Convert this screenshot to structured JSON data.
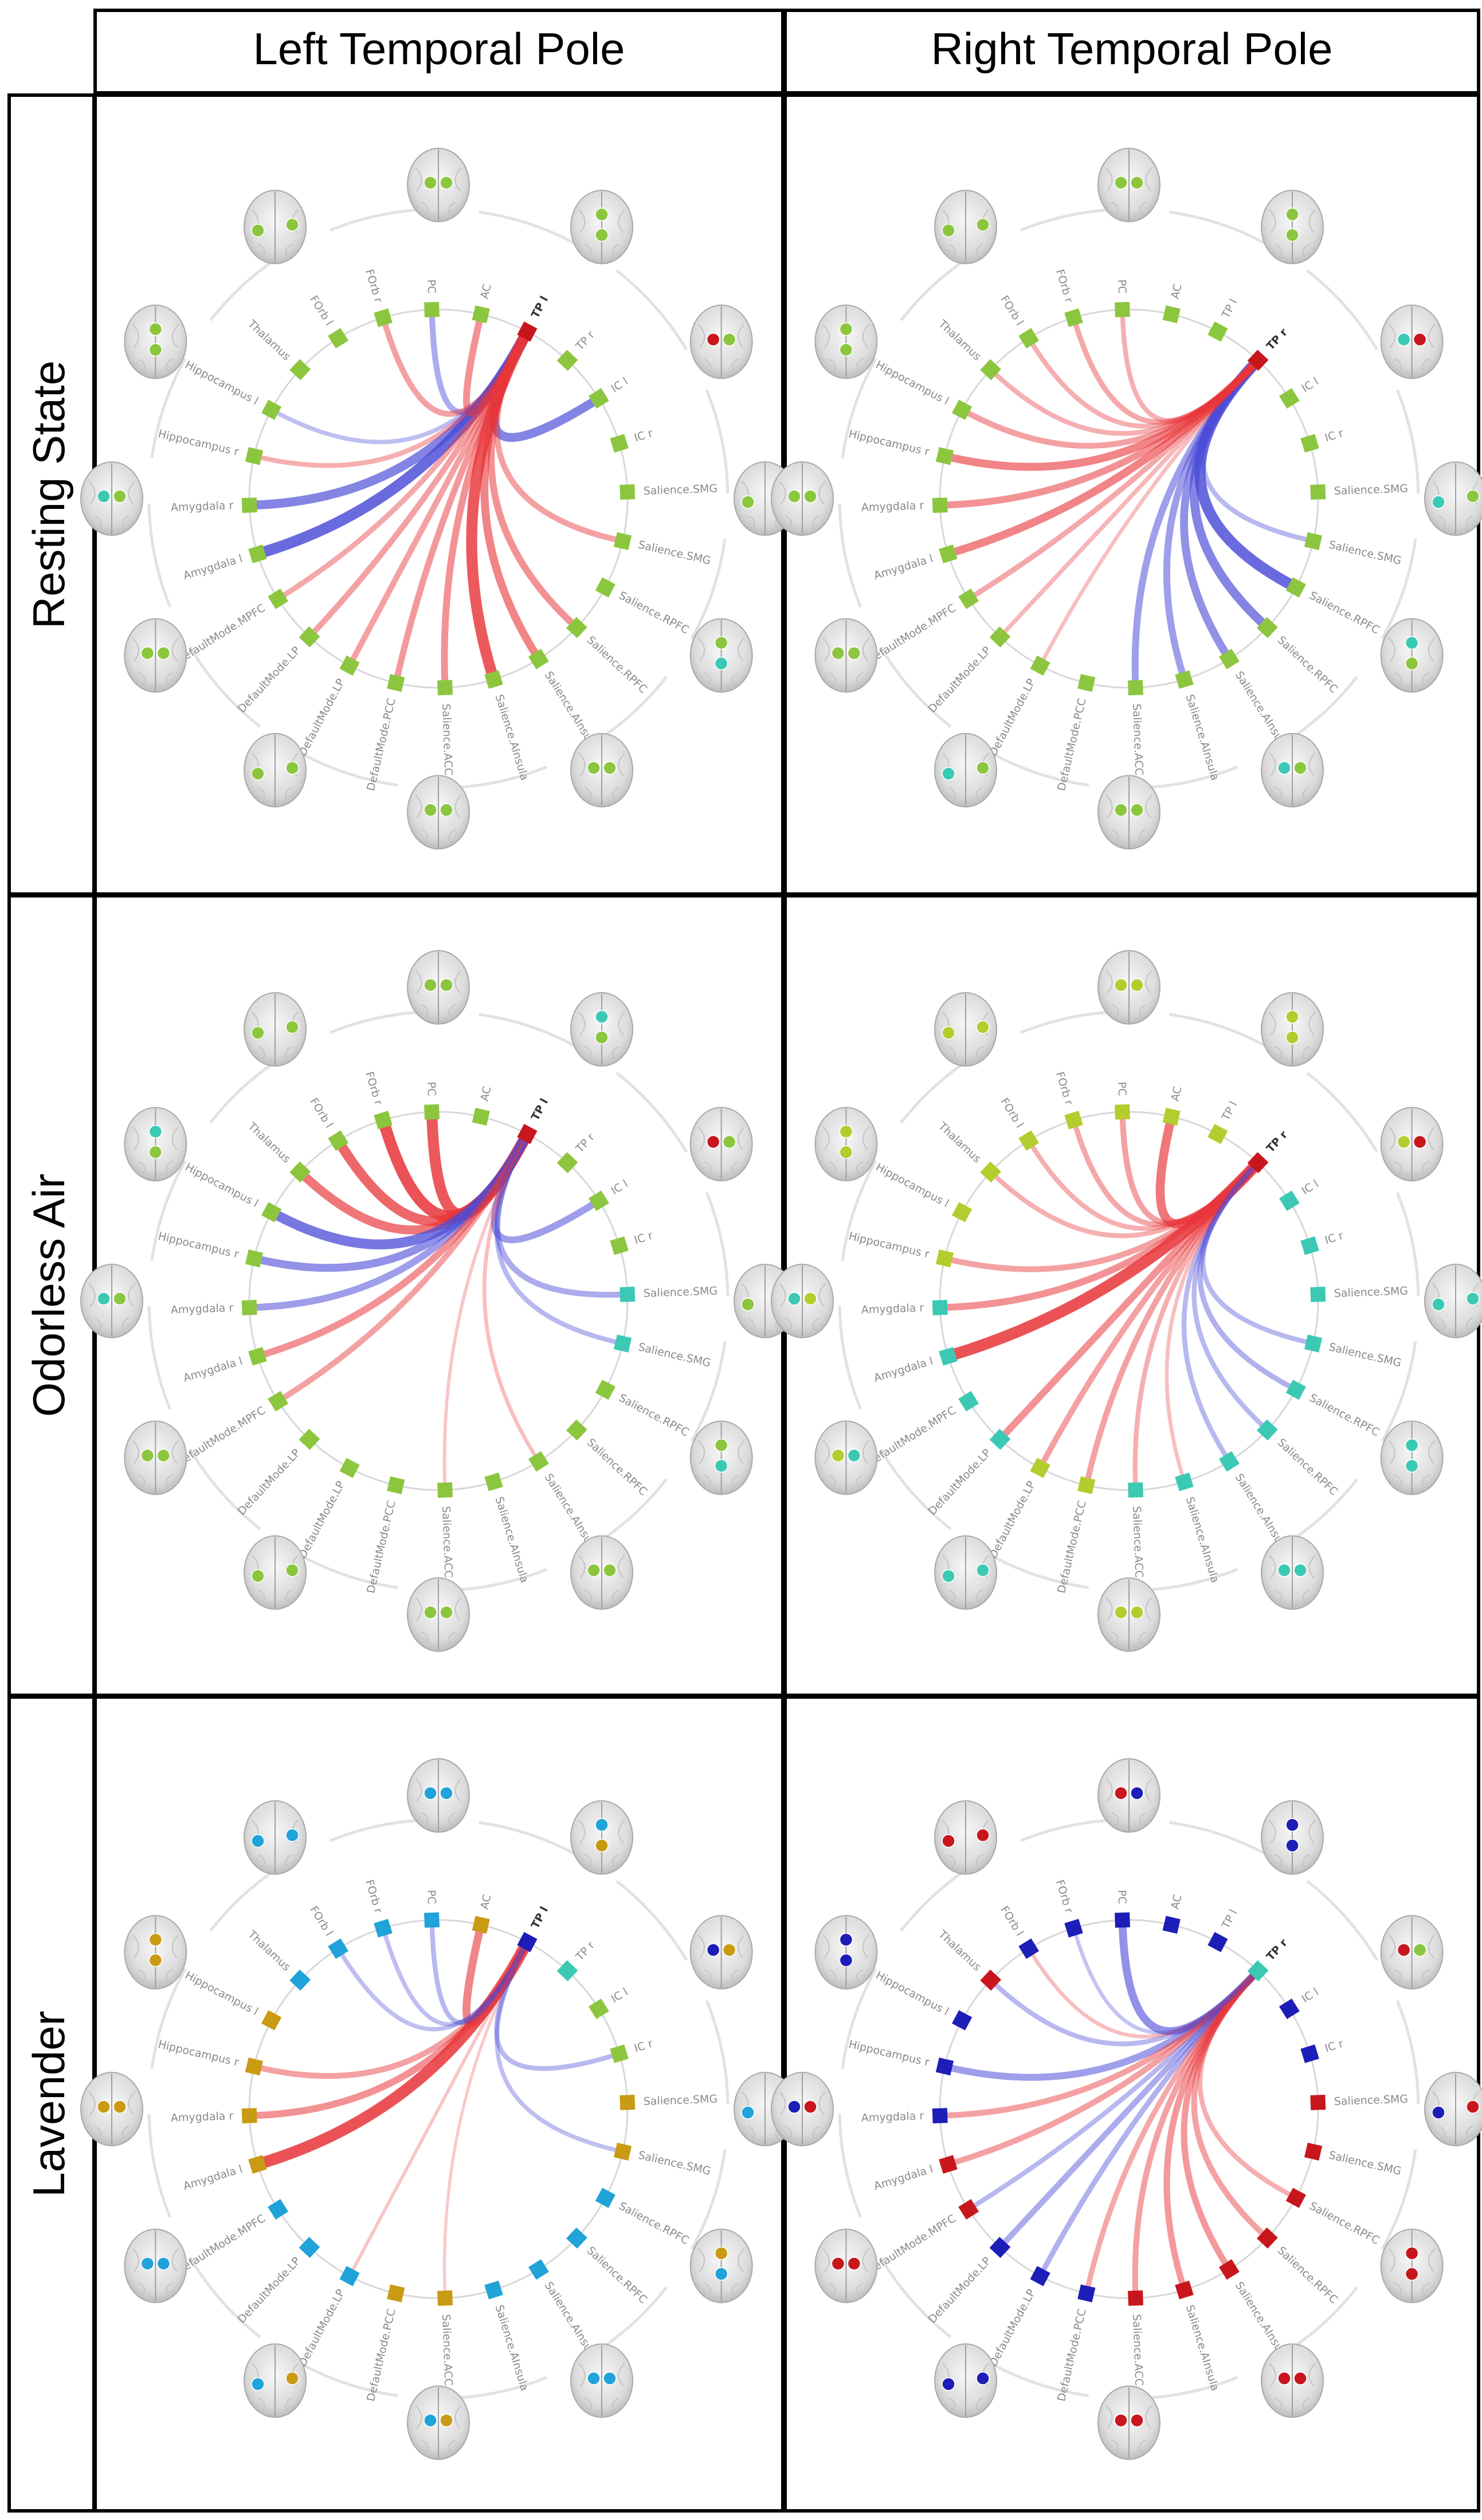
{
  "columns": [
    "Left Temporal Pole",
    "Right Temporal Pole"
  ],
  "rows": [
    "Resting State",
    "Odorless Air",
    "Lavender"
  ],
  "node_labels": [
    "TP l",
    "TP r",
    "IC l",
    "IC r",
    "Salience.SMG",
    "Salience.SMG",
    "Salience.RPFC",
    "Salience.RPFC",
    "Salience.AInsula",
    "Salience.AInsula",
    "Salience.ACC",
    "DefaultMode.PCC",
    "DefaultMode.LP",
    "DefaultMode.LP",
    "DefaultMode.MPFC",
    "Amygdala l",
    "Amygdala r",
    "Hippocampus r",
    "Hippocampus l",
    "Thalamus",
    "FOrb l",
    "FOrb r",
    "PC",
    "AC"
  ],
  "colors": {
    "green": "#8cc63f",
    "lime": "#b5cc2e",
    "teal": "#3cc9b4",
    "red": "#e8363a",
    "blue": "#4b4bd8",
    "sky": "#1fa3d8",
    "mustard": "#c99a14",
    "navy": "#1d1db8",
    "crimson": "#c8161d"
  },
  "panels": [
    {
      "nodes": [
        "crimson",
        "green",
        "green",
        "green",
        "green",
        "green",
        "green",
        "green",
        "green",
        "green",
        "green",
        "green",
        "green",
        "green",
        "green",
        "green",
        "green",
        "green",
        "green",
        "green",
        "green",
        "green",
        "green",
        "green"
      ],
      "edges": [
        {
          "from": 0,
          "to": 15,
          "sign": "neg",
          "strength": 0.9
        },
        {
          "from": 0,
          "to": 16,
          "sign": "neg",
          "strength": 0.7
        },
        {
          "from": 0,
          "to": 2,
          "sign": "neg",
          "strength": 0.7
        },
        {
          "from": 0,
          "to": 22,
          "sign": "neg",
          "strength": 0.4
        },
        {
          "from": 0,
          "to": 23,
          "sign": "pos",
          "strength": 0.5
        },
        {
          "from": 0,
          "to": 21,
          "sign": "pos",
          "strength": 0.4
        },
        {
          "from": 0,
          "to": 17,
          "sign": "pos",
          "strength": 0.3
        },
        {
          "from": 0,
          "to": 18,
          "sign": "neg",
          "strength": 0.25
        },
        {
          "from": 0,
          "to": 14,
          "sign": "pos",
          "strength": 0.35
        },
        {
          "from": 0,
          "to": 13,
          "sign": "pos",
          "strength": 0.4
        },
        {
          "from": 0,
          "to": 12,
          "sign": "pos",
          "strength": 0.4
        },
        {
          "from": 0,
          "to": 11,
          "sign": "pos",
          "strength": 0.45
        },
        {
          "from": 0,
          "to": 10,
          "sign": "pos",
          "strength": 0.5
        },
        {
          "from": 0,
          "to": 9,
          "sign": "pos",
          "strength": 0.9
        },
        {
          "from": 0,
          "to": 8,
          "sign": "pos",
          "strength": 0.6
        },
        {
          "from": 0,
          "to": 7,
          "sign": "pos",
          "strength": 0.5
        },
        {
          "from": 0,
          "to": 5,
          "sign": "pos",
          "strength": 0.4
        }
      ],
      "brains": [
        [
          "green",
          "green"
        ],
        [
          "green",
          "green"
        ],
        [
          "crimson",
          "green"
        ],
        [
          "green",
          "green"
        ],
        [
          "green",
          "teal"
        ],
        [
          "green",
          "green"
        ],
        [
          "green",
          "green"
        ],
        [
          "green",
          "green"
        ],
        [
          "green",
          "green"
        ],
        [
          "teal",
          "green"
        ],
        [
          "green",
          "green"
        ],
        [
          "green",
          "green"
        ]
      ]
    },
    {
      "nodes": [
        "green",
        "crimson",
        "green",
        "green",
        "green",
        "green",
        "green",
        "green",
        "green",
        "green",
        "green",
        "green",
        "green",
        "green",
        "green",
        "green",
        "green",
        "green",
        "green",
        "green",
        "green",
        "green",
        "green",
        "green"
      ],
      "edges": [
        {
          "from": 1,
          "to": 6,
          "sign": "neg",
          "strength": 0.9
        },
        {
          "from": 1,
          "to": 7,
          "sign": "neg",
          "strength": 0.7
        },
        {
          "from": 1,
          "to": 8,
          "sign": "neg",
          "strength": 0.6
        },
        {
          "from": 1,
          "to": 9,
          "sign": "neg",
          "strength": 0.5
        },
        {
          "from": 1,
          "to": 10,
          "sign": "neg",
          "strength": 0.5
        },
        {
          "from": 1,
          "to": 5,
          "sign": "neg",
          "strength": 0.3
        },
        {
          "from": 1,
          "to": 15,
          "sign": "pos",
          "strength": 0.6
        },
        {
          "from": 1,
          "to": 16,
          "sign": "pos",
          "strength": 0.5
        },
        {
          "from": 1,
          "to": 17,
          "sign": "pos",
          "strength": 0.6
        },
        {
          "from": 1,
          "to": 18,
          "sign": "pos",
          "strength": 0.4
        },
        {
          "from": 1,
          "to": 19,
          "sign": "pos",
          "strength": 0.3
        },
        {
          "from": 1,
          "to": 20,
          "sign": "pos",
          "strength": 0.3
        },
        {
          "from": 1,
          "to": 21,
          "sign": "pos",
          "strength": 0.35
        },
        {
          "from": 1,
          "to": 22,
          "sign": "pos",
          "strength": 0.3
        },
        {
          "from": 1,
          "to": 14,
          "sign": "pos",
          "strength": 0.35
        },
        {
          "from": 1,
          "to": 13,
          "sign": "pos",
          "strength": 0.25
        },
        {
          "from": 1,
          "to": 12,
          "sign": "pos",
          "strength": 0.2
        }
      ],
      "brains": [
        [
          "green",
          "green"
        ],
        [
          "green",
          "green"
        ],
        [
          "teal",
          "crimson"
        ],
        [
          "teal",
          "green"
        ],
        [
          "teal",
          "green"
        ],
        [
          "teal",
          "green"
        ],
        [
          "green",
          "green"
        ],
        [
          "teal",
          "green"
        ],
        [
          "green",
          "green"
        ],
        [
          "green",
          "green"
        ],
        [
          "green",
          "green"
        ],
        [
          "green",
          "green"
        ]
      ]
    },
    {
      "nodes": [
        "crimson",
        "green",
        "green",
        "green",
        "teal",
        "teal",
        "green",
        "green",
        "green",
        "green",
        "green",
        "green",
        "green",
        "green",
        "green",
        "green",
        "green",
        "green",
        "green",
        "green",
        "green",
        "green",
        "green",
        "green"
      ],
      "edges": [
        {
          "from": 0,
          "to": 22,
          "sign": "pos",
          "strength": 0.9
        },
        {
          "from": 0,
          "to": 21,
          "sign": "pos",
          "strength": 0.95
        },
        {
          "from": 0,
          "to": 20,
          "sign": "pos",
          "strength": 0.8
        },
        {
          "from": 0,
          "to": 19,
          "sign": "pos",
          "strength": 0.7
        },
        {
          "from": 0,
          "to": 18,
          "sign": "neg",
          "strength": 0.8
        },
        {
          "from": 0,
          "to": 17,
          "sign": "neg",
          "strength": 0.6
        },
        {
          "from": 0,
          "to": 16,
          "sign": "neg",
          "strength": 0.5
        },
        {
          "from": 0,
          "to": 15,
          "sign": "pos",
          "strength": 0.5
        },
        {
          "from": 0,
          "to": 14,
          "sign": "pos",
          "strength": 0.4
        },
        {
          "from": 0,
          "to": 2,
          "sign": "neg",
          "strength": 0.5
        },
        {
          "from": 0,
          "to": 4,
          "sign": "neg",
          "strength": 0.4
        },
        {
          "from": 0,
          "to": 5,
          "sign": "neg",
          "strength": 0.3
        },
        {
          "from": 0,
          "to": 8,
          "sign": "pos",
          "strength": 0.2
        },
        {
          "from": 0,
          "to": 10,
          "sign": "pos",
          "strength": 0.15
        }
      ],
      "brains": [
        [
          "green",
          "green"
        ],
        [
          "teal",
          "green"
        ],
        [
          "crimson",
          "green"
        ],
        [
          "green",
          "teal"
        ],
        [
          "green",
          "teal"
        ],
        [
          "green",
          "green"
        ],
        [
          "green",
          "green"
        ],
        [
          "green",
          "green"
        ],
        [
          "green",
          "green"
        ],
        [
          "teal",
          "green"
        ],
        [
          "teal",
          "green"
        ],
        [
          "green",
          "green"
        ]
      ]
    },
    {
      "nodes": [
        "lime",
        "crimson",
        "teal",
        "teal",
        "teal",
        "teal",
        "teal",
        "teal",
        "teal",
        "teal",
        "teal",
        "lime",
        "lime",
        "teal",
        "teal",
        "teal",
        "teal",
        "lime",
        "lime",
        "lime",
        "lime",
        "lime",
        "lime",
        "lime"
      ],
      "edges": [
        {
          "from": 1,
          "to": 15,
          "sign": "pos",
          "strength": 0.95
        },
        {
          "from": 1,
          "to": 16,
          "sign": "pos",
          "strength": 0.5
        },
        {
          "from": 1,
          "to": 17,
          "sign": "pos",
          "strength": 0.4
        },
        {
          "from": 1,
          "to": 13,
          "sign": "pos",
          "strength": 0.5
        },
        {
          "from": 1,
          "to": 12,
          "sign": "pos",
          "strength": 0.4
        },
        {
          "from": 1,
          "to": 11,
          "sign": "pos",
          "strength": 0.4
        },
        {
          "from": 1,
          "to": 10,
          "sign": "pos",
          "strength": 0.3
        },
        {
          "from": 1,
          "to": 23,
          "sign": "pos",
          "strength": 0.7
        },
        {
          "from": 1,
          "to": 22,
          "sign": "pos",
          "strength": 0.4
        },
        {
          "from": 1,
          "to": 21,
          "sign": "pos",
          "strength": 0.35
        },
        {
          "from": 1,
          "to": 20,
          "sign": "pos",
          "strength": 0.3
        },
        {
          "from": 1,
          "to": 19,
          "sign": "pos",
          "strength": 0.3
        },
        {
          "from": 1,
          "to": 8,
          "sign": "neg",
          "strength": 0.3
        },
        {
          "from": 1,
          "to": 7,
          "sign": "neg",
          "strength": 0.3
        },
        {
          "from": 1,
          "to": 6,
          "sign": "neg",
          "strength": 0.35
        },
        {
          "from": 1,
          "to": 5,
          "sign": "neg",
          "strength": 0.3
        },
        {
          "from": 1,
          "to": 9,
          "sign": "pos",
          "strength": 0.2
        }
      ],
      "brains": [
        [
          "lime",
          "lime"
        ],
        [
          "lime",
          "lime"
        ],
        [
          "lime",
          "crimson"
        ],
        [
          "teal",
          "teal"
        ],
        [
          "teal",
          "teal"
        ],
        [
          "teal",
          "teal"
        ],
        [
          "lime",
          "lime"
        ],
        [
          "teal",
          "teal"
        ],
        [
          "lime",
          "teal"
        ],
        [
          "teal",
          "lime"
        ],
        [
          "lime",
          "lime"
        ],
        [
          "lime",
          "lime"
        ]
      ]
    },
    {
      "nodes": [
        "navy",
        "teal",
        "green",
        "green",
        "mustard",
        "mustard",
        "sky",
        "sky",
        "sky",
        "sky",
        "mustard",
        "mustard",
        "sky",
        "sky",
        "sky",
        "mustard",
        "mustard",
        "mustard",
        "mustard",
        "sky",
        "sky",
        "sky",
        "sky",
        "mustard"
      ],
      "edges": [
        {
          "from": 0,
          "to": 15,
          "sign": "pos",
          "strength": 0.95
        },
        {
          "from": 0,
          "to": 16,
          "sign": "pos",
          "strength": 0.5
        },
        {
          "from": 0,
          "to": 17,
          "sign": "pos",
          "strength": 0.4
        },
        {
          "from": 0,
          "to": 23,
          "sign": "pos",
          "strength": 0.6
        },
        {
          "from": 0,
          "to": 22,
          "sign": "neg",
          "strength": 0.3
        },
        {
          "from": 0,
          "to": 21,
          "sign": "neg",
          "strength": 0.25
        },
        {
          "from": 0,
          "to": 20,
          "sign": "neg",
          "strength": 0.25
        },
        {
          "from": 0,
          "to": 3,
          "sign": "neg",
          "strength": 0.3
        },
        {
          "from": 0,
          "to": 5,
          "sign": "neg",
          "strength": 0.25
        },
        {
          "from": 0,
          "to": 12,
          "sign": "pos",
          "strength": 0.15
        },
        {
          "from": 0,
          "to": 10,
          "sign": "pos",
          "strength": 0.12
        }
      ],
      "brains": [
        [
          "sky",
          "sky"
        ],
        [
          "sky",
          "mustard"
        ],
        [
          "navy",
          "mustard"
        ],
        [
          "sky",
          "mustard"
        ],
        [
          "mustard",
          "sky"
        ],
        [
          "sky",
          "sky"
        ],
        [
          "sky",
          "mustard"
        ],
        [
          "sky",
          "mustard"
        ],
        [
          "sky",
          "sky"
        ],
        [
          "mustard",
          "mustard"
        ],
        [
          "mustard",
          "mustard"
        ],
        [
          "sky",
          "sky"
        ]
      ]
    },
    {
      "nodes": [
        "navy",
        "teal",
        "navy",
        "navy",
        "crimson",
        "crimson",
        "crimson",
        "crimson",
        "crimson",
        "crimson",
        "crimson",
        "navy",
        "navy",
        "navy",
        "crimson",
        "crimson",
        "navy",
        "navy",
        "navy",
        "crimson",
        "navy",
        "navy",
        "navy",
        "navy"
      ],
      "edges": [
        {
          "from": 1,
          "to": 22,
          "sign": "neg",
          "strength": 0.6
        },
        {
          "from": 1,
          "to": 17,
          "sign": "neg",
          "strength": 0.5
        },
        {
          "from": 1,
          "to": 16,
          "sign": "pos",
          "strength": 0.4
        },
        {
          "from": 1,
          "to": 15,
          "sign": "pos",
          "strength": 0.4
        },
        {
          "from": 1,
          "to": 14,
          "sign": "neg",
          "strength": 0.3
        },
        {
          "from": 1,
          "to": 13,
          "sign": "neg",
          "strength": 0.4
        },
        {
          "from": 1,
          "to": 12,
          "sign": "neg",
          "strength": 0.35
        },
        {
          "from": 1,
          "to": 11,
          "sign": "pos",
          "strength": 0.35
        },
        {
          "from": 1,
          "to": 10,
          "sign": "pos",
          "strength": 0.4
        },
        {
          "from": 1,
          "to": 9,
          "sign": "pos",
          "strength": 0.45
        },
        {
          "from": 1,
          "to": 8,
          "sign": "pos",
          "strength": 0.45
        },
        {
          "from": 1,
          "to": 7,
          "sign": "pos",
          "strength": 0.4
        },
        {
          "from": 1,
          "to": 6,
          "sign": "pos",
          "strength": 0.3
        },
        {
          "from": 1,
          "to": 19,
          "sign": "neg",
          "strength": 0.3
        },
        {
          "from": 1,
          "to": 20,
          "sign": "pos",
          "strength": 0.2
        },
        {
          "from": 1,
          "to": 21,
          "sign": "neg",
          "strength": 0.2
        }
      ],
      "brains": [
        [
          "crimson",
          "navy"
        ],
        [
          "navy",
          "navy"
        ],
        [
          "crimson",
          "green"
        ],
        [
          "navy",
          "crimson"
        ],
        [
          "crimson",
          "crimson"
        ],
        [
          "crimson",
          "crimson"
        ],
        [
          "crimson",
          "crimson"
        ],
        [
          "navy",
          "navy"
        ],
        [
          "crimson",
          "crimson"
        ],
        [
          "navy",
          "crimson"
        ],
        [
          "navy",
          "navy"
        ],
        [
          "crimson",
          "crimson"
        ]
      ]
    }
  ]
}
